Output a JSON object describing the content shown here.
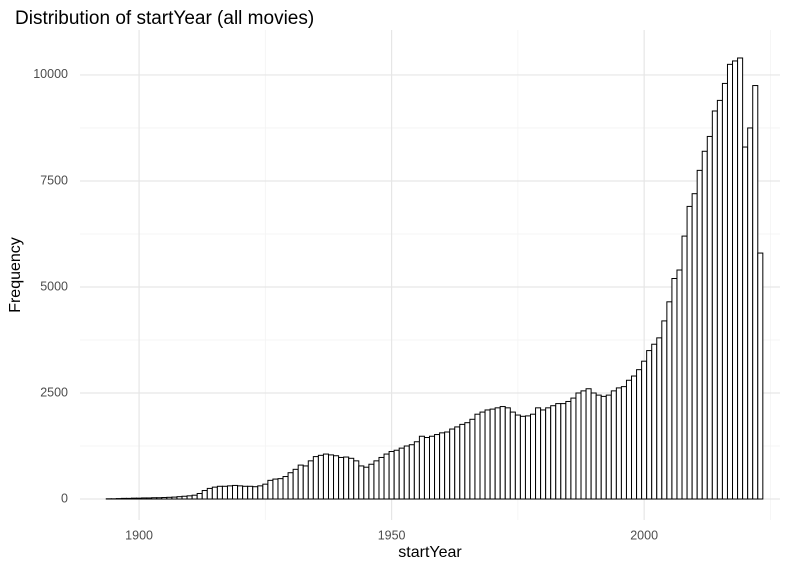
{
  "chart_data": {
    "type": "histogram",
    "title": "Distribution of startYear (all movies)",
    "x_label": "startYear",
    "y_label": "Frequency",
    "bins": [
      1893.5,
      1894.5,
      1895.5,
      1896.5,
      1897.5,
      1898.5,
      1899.5,
      1900.5,
      1901.5,
      1902.5,
      1903.5,
      1904.5,
      1905.5,
      1906.5,
      1907.5,
      1908.5,
      1909.5,
      1910.5,
      1911.5,
      1912.5,
      1913.5,
      1914.5,
      1915.5,
      1916.5,
      1917.5,
      1918.5,
      1919.5,
      1920.5,
      1921.5,
      1922.5,
      1923.5,
      1924.5,
      1925.5,
      1926.5,
      1927.5,
      1928.5,
      1929.5,
      1930.5,
      1931.5,
      1932.5,
      1933.5,
      1934.5,
      1935.5,
      1936.5,
      1937.5,
      1938.5,
      1939.5,
      1940.5,
      1941.5,
      1942.5,
      1943.5,
      1944.5,
      1945.5,
      1946.5,
      1947.5,
      1948.5,
      1949.5,
      1950.5,
      1951.5,
      1952.5,
      1953.5,
      1954.5,
      1955.5,
      1956.5,
      1957.5,
      1958.5,
      1959.5,
      1960.5,
      1961.5,
      1962.5,
      1963.5,
      1964.5,
      1965.5,
      1966.5,
      1967.5,
      1968.5,
      1969.5,
      1970.5,
      1971.5,
      1972.5,
      1973.5,
      1974.5,
      1975.5,
      1976.5,
      1977.5,
      1978.5,
      1979.5,
      1980.5,
      1981.5,
      1982.5,
      1983.5,
      1984.5,
      1985.5,
      1986.5,
      1987.5,
      1988.5,
      1989.5,
      1990.5,
      1991.5,
      1992.5,
      1993.5,
      1994.5,
      1995.5,
      1996.5,
      1997.5,
      1998.5,
      1999.5,
      2000.5,
      2001.5,
      2002.5,
      2003.5,
      2004.5,
      2005.5,
      2006.5,
      2007.5,
      2008.5,
      2009.5,
      2010.5,
      2011.5,
      2012.5,
      2013.5,
      2014.5,
      2015.5,
      2016.5,
      2017.5,
      2018.5,
      2019.5,
      2020.5,
      2021.5,
      2022.5,
      2023.5
    ],
    "values": [
      5,
      5,
      10,
      15,
      15,
      20,
      20,
      25,
      25,
      30,
      30,
      35,
      40,
      45,
      55,
      65,
      75,
      90,
      130,
      200,
      250,
      280,
      300,
      300,
      310,
      320,
      310,
      300,
      300,
      290,
      310,
      350,
      440,
      470,
      480,
      530,
      620,
      700,
      800,
      780,
      900,
      1000,
      1030,
      1060,
      1040,
      1020,
      980,
      990,
      960,
      900,
      780,
      750,
      820,
      900,
      980,
      1060,
      1120,
      1150,
      1200,
      1250,
      1280,
      1350,
      1480,
      1450,
      1480,
      1520,
      1560,
      1580,
      1650,
      1700,
      1760,
      1800,
      1880,
      2000,
      2050,
      2100,
      2120,
      2150,
      2180,
      2150,
      2050,
      1980,
      1950,
      1960,
      2000,
      2150,
      2100,
      2150,
      2200,
      2250,
      2250,
      2300,
      2380,
      2500,
      2550,
      2600,
      2500,
      2450,
      2420,
      2450,
      2550,
      2620,
      2650,
      2800,
      2900,
      3050,
      3250,
      3500,
      3650,
      3800,
      4200,
      4650,
      5200,
      5400,
      6200,
      6900,
      7200,
      7750,
      8200,
      8550,
      9150,
      9400,
      9800,
      10250,
      10330,
      10400,
      8300,
      8750,
      9750,
      5800
    ],
    "fill": "#ffffff",
    "edge_color": "#000000",
    "xlim": [
      1888.3,
      2026.9
    ],
    "ylim": [
      -495,
      11060
    ],
    "xticks": [
      1900,
      1950,
      2000
    ],
    "yticks": [
      0,
      2500,
      5000,
      7500,
      10000
    ],
    "x_minor_ticks": [
      1925,
      1975,
      2025
    ],
    "y_minor_ticks": [
      1250,
      3750,
      6250,
      8750
    ],
    "grid": true
  }
}
